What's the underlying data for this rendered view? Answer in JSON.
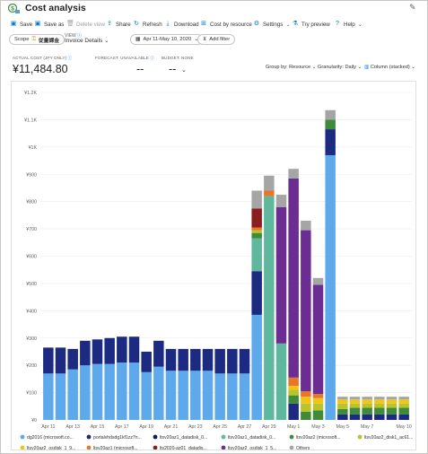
{
  "window": {
    "title": "Cost analysis",
    "pin_icon": "pin-icon"
  },
  "toolbar": {
    "items": [
      {
        "label": "Save",
        "icon": "save-icon",
        "disabled": false
      },
      {
        "label": "Save as",
        "icon": "save-as-icon",
        "disabled": false
      },
      {
        "label": "Delete view",
        "icon": "delete-icon",
        "disabled": true
      },
      {
        "label": "Share",
        "icon": "share-icon",
        "disabled": false
      },
      {
        "label": "Refresh",
        "icon": "refresh-icon",
        "disabled": false
      },
      {
        "label": "Download",
        "icon": "download-icon",
        "disabled": false
      },
      {
        "label": "Cost by resource",
        "icon": "cost-by-resource-icon",
        "disabled": false
      },
      {
        "label": "Settings",
        "icon": "gear-icon",
        "disabled": false
      },
      {
        "label": "Try preview",
        "icon": "preview-icon",
        "disabled": false
      },
      {
        "label": "Help",
        "icon": "help-icon",
        "disabled": false
      }
    ]
  },
  "filters": {
    "scope_label": "Scope",
    "scope_value": "従量課金",
    "view_label": "VIEW",
    "view_value": "Invoice Details",
    "date_range": "Apr 11-May 10, 2020",
    "add_filter": "Add filter"
  },
  "summary": {
    "actual_cost_label": "ACTUAL COST (JPY ONLY)",
    "actual_cost_value": "¥11,484.80",
    "forecast_label": "FORECAST: UNAVAILABLE",
    "forecast_value": "--",
    "budget_label": "BUDGET: NONE",
    "budget_value": "--",
    "group_by": "Group by: Resource",
    "granularity": "Granularity: Daily",
    "chart_type": "Column (stacked)"
  },
  "chart_data": {
    "type": "bar",
    "stacked": true,
    "ylim": [
      0,
      1200
    ],
    "y_ticks": [
      "¥0",
      "¥100",
      "¥200",
      "¥300",
      "¥400",
      "¥500",
      "¥600",
      "¥700",
      "¥800",
      "¥900",
      "¥1K",
      "¥1.1K",
      "¥1.2K"
    ],
    "x_labels": [
      "Apr 11",
      "Apr 13",
      "Apr 15",
      "Apr 17",
      "Apr 19",
      "Apr 21",
      "Apr 23",
      "Apr 25",
      "Apr 27",
      "Apr 29",
      "May 1",
      "May 3",
      "May 5",
      "May 7",
      "May 10"
    ],
    "categories": [
      "Apr 11",
      "Apr 12",
      "Apr 13",
      "Apr 14",
      "Apr 15",
      "Apr 16",
      "Apr 17",
      "Apr 18",
      "Apr 19",
      "Apr 20",
      "Apr 21",
      "Apr 22",
      "Apr 23",
      "Apr 24",
      "Apr 25",
      "Apr 26",
      "Apr 27",
      "Apr 28",
      "Apr 29",
      "Apr 30",
      "May 1",
      "May 2",
      "May 3",
      "May 4",
      "May 5",
      "May 6",
      "May 7",
      "May 8",
      "May 9",
      "May 10"
    ],
    "grid": true,
    "legend_position": "bottom",
    "series": [
      {
        "name": "dg2016 (microsoft.co...",
        "color": "#5ea9eb",
        "values": [
          170,
          170,
          185,
          200,
          205,
          205,
          210,
          210,
          175,
          195,
          180,
          180,
          180,
          180,
          170,
          170,
          170,
          385,
          0,
          0,
          0,
          0,
          0,
          970,
          0,
          0,
          0,
          0,
          0,
          0
        ]
      },
      {
        "name": "portalvhdsdg1kf1zz7n...",
        "color": "#1c2a82",
        "values": [
          95,
          95,
          75,
          90,
          90,
          95,
          95,
          95,
          75,
          95,
          80,
          80,
          80,
          80,
          90,
          90,
          90,
          160,
          0,
          0,
          60,
          0,
          0,
          95,
          20,
          20,
          20,
          20,
          20,
          20
        ]
      },
      {
        "name": "ltsv20az1_datadisk_0...",
        "color": "#0f1b5e",
        "values": [
          0,
          0,
          0,
          0,
          0,
          0,
          0,
          0,
          0,
          0,
          0,
          0,
          0,
          0,
          0,
          0,
          0,
          0,
          0,
          0,
          0,
          0,
          0,
          0,
          0,
          0,
          0,
          0,
          0,
          0
        ]
      },
      {
        "name": "ltsv20az1_datadisk_0...",
        "color": "#5fb89d",
        "values": [
          0,
          0,
          0,
          0,
          0,
          0,
          0,
          0,
          0,
          0,
          0,
          0,
          0,
          0,
          0,
          0,
          0,
          120,
          820,
          280,
          0,
          0,
          0,
          0,
          0,
          0,
          0,
          0,
          0,
          0
        ]
      },
      {
        "name": "ltsv20az2 (microsoft...",
        "color": "#3f8b3a",
        "values": [
          0,
          0,
          0,
          0,
          0,
          0,
          0,
          0,
          0,
          0,
          0,
          0,
          0,
          0,
          0,
          0,
          0,
          20,
          0,
          0,
          30,
          30,
          35,
          35,
          20,
          25,
          25,
          25,
          25,
          25
        ]
      },
      {
        "name": "ltsv20az2_disk1_ac61...",
        "color": "#b9c42b",
        "values": [
          0,
          0,
          0,
          0,
          0,
          0,
          0,
          0,
          0,
          0,
          0,
          0,
          0,
          0,
          0,
          0,
          0,
          10,
          0,
          0,
          20,
          30,
          25,
          0,
          20,
          15,
          15,
          15,
          15,
          15
        ]
      },
      {
        "name": "ltsv20az2_osdisk_1_9...",
        "color": "#f0c419",
        "values": [
          0,
          0,
          0,
          0,
          0,
          0,
          0,
          0,
          0,
          0,
          0,
          0,
          0,
          0,
          0,
          0,
          0,
          0,
          0,
          0,
          15,
          25,
          20,
          0,
          15,
          15,
          15,
          15,
          15,
          15
        ]
      },
      {
        "name": "ltsv20az1 (microsoft...",
        "color": "#e97528",
        "values": [
          0,
          0,
          0,
          0,
          0,
          0,
          0,
          0,
          0,
          0,
          0,
          0,
          0,
          0,
          0,
          0,
          0,
          10,
          20,
          0,
          30,
          20,
          15,
          0,
          0,
          0,
          0,
          0,
          0,
          0
        ]
      },
      {
        "name": "lts2020-az01_datadis...",
        "color": "#8b1e1e",
        "values": [
          0,
          0,
          0,
          0,
          0,
          0,
          0,
          0,
          0,
          0,
          0,
          0,
          0,
          0,
          0,
          0,
          0,
          70,
          0,
          0,
          0,
          0,
          0,
          0,
          0,
          0,
          0,
          0,
          0,
          0
        ]
      },
      {
        "name": "ltsv20az2_osdisk_1_5...",
        "color": "#6b2d91",
        "values": [
          0,
          0,
          0,
          0,
          0,
          0,
          0,
          0,
          0,
          0,
          0,
          0,
          0,
          0,
          0,
          0,
          0,
          0,
          0,
          500,
          730,
          590,
          400,
          0,
          0,
          0,
          0,
          0,
          0,
          0
        ]
      },
      {
        "name": "Others",
        "color": "#a5a5a5",
        "values": [
          0,
          0,
          0,
          0,
          0,
          0,
          0,
          0,
          0,
          0,
          0,
          0,
          0,
          0,
          0,
          0,
          0,
          65,
          55,
          45,
          35,
          35,
          25,
          35,
          10,
          10,
          10,
          10,
          10,
          10
        ]
      }
    ]
  }
}
